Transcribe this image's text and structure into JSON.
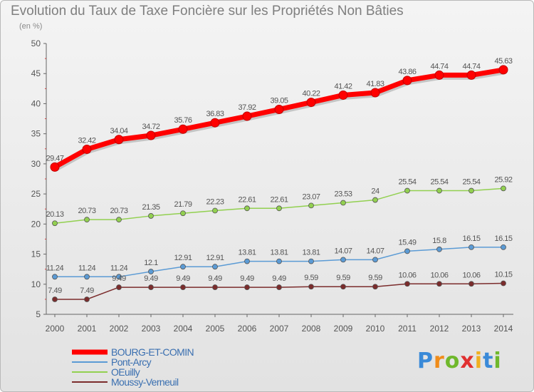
{
  "title": "Evolution du Taux de Taxe Foncière sur les Propriétés Non Bâties",
  "unit_label": "(en %)",
  "logo": {
    "letters": [
      "P",
      "r",
      "o",
      "x",
      "i",
      "t",
      "i"
    ],
    "colors": [
      "#3a8ad8",
      "#f08c1a",
      "#6fb82c",
      "#e03030",
      "#f0b020",
      "#3a8ad8",
      "#6fb82c"
    ]
  },
  "chart_data": {
    "type": "line",
    "x": [
      "2000",
      "2001",
      "2002",
      "2003",
      "2004",
      "2005",
      "2006",
      "2007",
      "2008",
      "2009",
      "2010",
      "2011",
      "2012",
      "2013",
      "2014"
    ],
    "ylim": [
      5,
      50
    ],
    "yticks": [
      5,
      10,
      15,
      20,
      25,
      30,
      35,
      40,
      45,
      50
    ],
    "grid": false,
    "legend_position": "bottom-left",
    "series": [
      {
        "name": "BOURG-ET-COMIN",
        "color": "#ff0000",
        "values": [
          29.47,
          32.42,
          34.04,
          34.72,
          35.76,
          36.83,
          37.92,
          39.05,
          40.22,
          41.42,
          41.83,
          43.86,
          44.74,
          44.74,
          45.63
        ],
        "labels": [
          "29.47",
          "32.42",
          "34.04",
          "34.72",
          "35.76",
          "36.83",
          "37.92",
          "39.05",
          "40.22",
          "41.42",
          "41.83",
          "43.86",
          "44.74",
          "44.74",
          "45.63"
        ]
      },
      {
        "name": "Pont-Arcy",
        "color": "#5b9bd5",
        "values": [
          11.24,
          11.24,
          11.24,
          12.1,
          12.91,
          12.91,
          13.81,
          13.81,
          13.81,
          14.07,
          14.07,
          15.49,
          15.8,
          16.15,
          16.15
        ],
        "labels": [
          "11.24",
          "11.24",
          "11.24",
          "12.1",
          "12.91",
          "12.91",
          "13.81",
          "13.81",
          "13.81",
          "14.07",
          "14.07",
          "15.49",
          "15.8",
          "16.15",
          "16.15"
        ]
      },
      {
        "name": "OEuilly",
        "color": "#92d050",
        "values": [
          20.13,
          20.73,
          20.73,
          21.35,
          21.79,
          22.23,
          22.61,
          22.61,
          23.07,
          23.53,
          24,
          25.54,
          25.54,
          25.54,
          25.92
        ],
        "labels": [
          "20.13",
          "20.73",
          "20.73",
          "21.35",
          "21.79",
          "22.23",
          "22.61",
          "22.61",
          "23.07",
          "23.53",
          "24",
          "25.54",
          "25.54",
          "25.54",
          "25.92"
        ]
      },
      {
        "name": "Moussy-Verneuil",
        "color": "#7b2c2c",
        "values": [
          7.49,
          7.49,
          9.49,
          9.49,
          9.49,
          9.49,
          9.49,
          9.49,
          9.59,
          9.59,
          9.59,
          10.06,
          10.06,
          10.06,
          10.15
        ],
        "labels": [
          "7.49",
          "7.49",
          "9.49",
          "9.49",
          "9.49",
          "9.49",
          "9.49",
          "9.49",
          "9.59",
          "9.59",
          "9.59",
          "10.06",
          "10.06",
          "10.06",
          "10.15"
        ]
      }
    ]
  }
}
